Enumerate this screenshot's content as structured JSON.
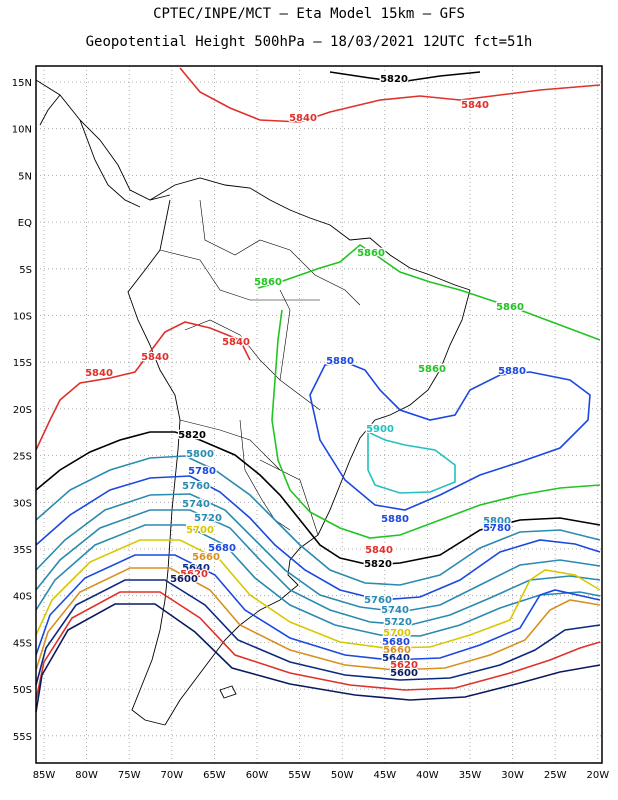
{
  "title": {
    "line1": "CPTEC/INPE/MCT –  Eta Model 15km – GFS",
    "line2": "Geopotential Height 500hPa – 18/03/2021 12UTC fct=51h"
  },
  "lat_labels": [
    "15N",
    "10N",
    "5N",
    "EQ",
    "5S",
    "10S",
    "15S",
    "20S",
    "25S",
    "30S",
    "35S",
    "40S",
    "45S",
    "50S",
    "55S"
  ],
  "lon_labels": [
    "85W",
    "80W",
    "75W",
    "70W",
    "65W",
    "60W",
    "55W",
    "50W",
    "45W",
    "40W",
    "35W",
    "30W",
    "25W",
    "20W"
  ],
  "contour_labels": [
    {
      "text": "5820",
      "color": "#000000"
    },
    {
      "text": "5840",
      "color": "#e0302a"
    },
    {
      "text": "5840",
      "color": "#e0302a"
    },
    {
      "text": "5840",
      "color": "#e0302a"
    },
    {
      "text": "5840",
      "color": "#e0302a"
    },
    {
      "text": "5840",
      "color": "#e0302a"
    },
    {
      "text": "5860",
      "color": "#22c422"
    },
    {
      "text": "5860",
      "color": "#22c422"
    },
    {
      "text": "5860",
      "color": "#22c422"
    },
    {
      "text": "5860",
      "color": "#22c422"
    },
    {
      "text": "5880",
      "color": "#1a48e0"
    },
    {
      "text": "5880",
      "color": "#1a48e0"
    },
    {
      "text": "5880",
      "color": "#1a48e0"
    },
    {
      "text": "5900",
      "color": "#22c0c0"
    },
    {
      "text": "5820",
      "color": "#000000"
    },
    {
      "text": "5800",
      "color": "#2a8ab0"
    },
    {
      "text": "5780",
      "color": "#1a48e0"
    },
    {
      "text": "5760",
      "color": "#2a8ab0"
    },
    {
      "text": "5740",
      "color": "#2a8ab0"
    },
    {
      "text": "5720",
      "color": "#2a8ab0"
    },
    {
      "text": "5700",
      "color": "#d8c800"
    },
    {
      "text": "5680",
      "color": "#1a48e0"
    },
    {
      "text": "5660",
      "color": "#d89020"
    },
    {
      "text": "5640",
      "color": "#0a2a80"
    },
    {
      "text": "5620",
      "color": "#e0302a"
    },
    {
      "text": "5600",
      "color": "#0a1a60"
    },
    {
      "text": "5800",
      "color": "#2a8ab0"
    },
    {
      "text": "5780",
      "color": "#1a48e0"
    },
    {
      "text": "5840",
      "color": "#e0302a"
    },
    {
      "text": "5820",
      "color": "#000000"
    },
    {
      "text": "5760",
      "color": "#2a8ab0"
    },
    {
      "text": "5740",
      "color": "#2a8ab0"
    },
    {
      "text": "5720",
      "color": "#2a8ab0"
    },
    {
      "text": "5700",
      "color": "#d8c800"
    },
    {
      "text": "5680",
      "color": "#1a48e0"
    },
    {
      "text": "5660",
      "color": "#d89020"
    },
    {
      "text": "5640",
      "color": "#0a2a80"
    },
    {
      "text": "5620",
      "color": "#e0302a"
    },
    {
      "text": "5600",
      "color": "#0a1a60"
    }
  ]
}
